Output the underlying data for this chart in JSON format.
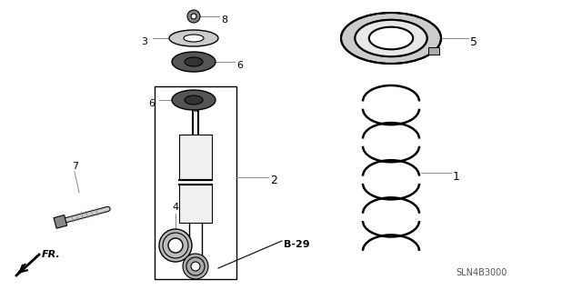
{
  "background_color": "#ffffff",
  "line_color": "#000000",
  "catalog_num": "SLN4B3000",
  "fig_width": 6.4,
  "fig_height": 3.19,
  "dpi": 100
}
